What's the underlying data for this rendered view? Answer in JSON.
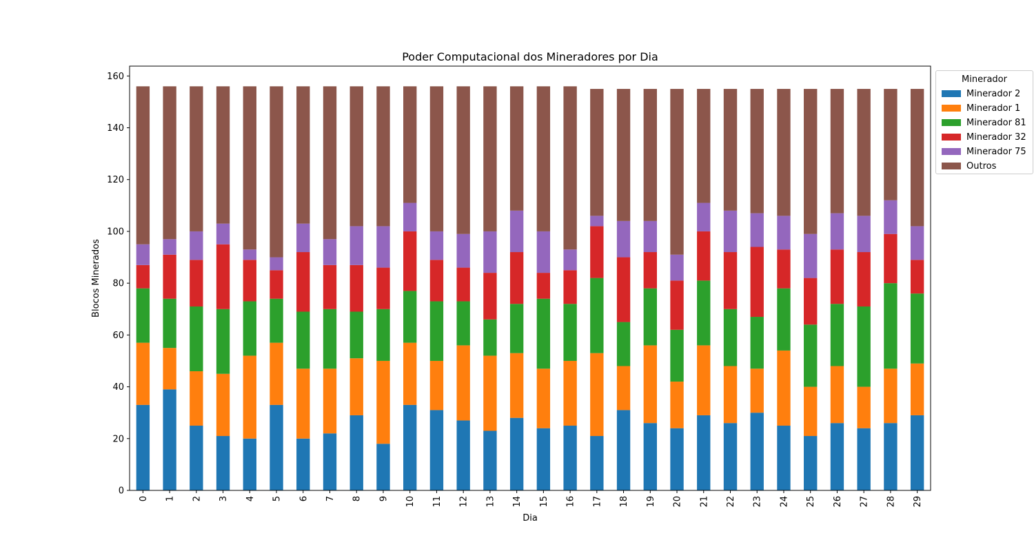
{
  "chart_data": {
    "type": "bar",
    "stacked": true,
    "title": "Poder Computacional dos Mineradores por Dia",
    "xlabel": "Dia",
    "ylabel": "Blocos Minerados",
    "ylim": [
      0,
      163.8
    ],
    "yticks": [
      0,
      20,
      40,
      60,
      80,
      100,
      120,
      140,
      160
    ],
    "grid": false,
    "legend": {
      "title": "Minerador",
      "placement": "outside-top-right"
    },
    "categories": [
      "0",
      "1",
      "2",
      "3",
      "4",
      "5",
      "6",
      "7",
      "8",
      "9",
      "10",
      "11",
      "12",
      "13",
      "14",
      "15",
      "16",
      "17",
      "18",
      "19",
      "20",
      "21",
      "22",
      "23",
      "24",
      "25",
      "26",
      "27",
      "28",
      "29"
    ],
    "series": [
      {
        "name": "Minerador 2",
        "color": "#1f77b4",
        "values": [
          33,
          39,
          25,
          21,
          20,
          33,
          20,
          22,
          29,
          18,
          33,
          31,
          27,
          23,
          28,
          24,
          25,
          21,
          31,
          26,
          24,
          29,
          26,
          30,
          25,
          21,
          26,
          24,
          26,
          29
        ]
      },
      {
        "name": "Minerador 1",
        "color": "#ff7f0e",
        "values": [
          24,
          16,
          21,
          24,
          32,
          24,
          27,
          25,
          22,
          32,
          24,
          19,
          29,
          29,
          25,
          23,
          25,
          32,
          17,
          30,
          18,
          27,
          22,
          17,
          29,
          19,
          22,
          16,
          21,
          20
        ]
      },
      {
        "name": "Minerador 81",
        "color": "#2ca02c",
        "values": [
          21,
          19,
          25,
          25,
          21,
          17,
          22,
          23,
          18,
          20,
          20,
          23,
          17,
          14,
          19,
          27,
          22,
          29,
          17,
          22,
          20,
          25,
          22,
          20,
          24,
          24,
          24,
          31,
          33,
          27
        ]
      },
      {
        "name": "Minerador 32",
        "color": "#d62728",
        "values": [
          9,
          17,
          18,
          25,
          16,
          11,
          23,
          17,
          18,
          16,
          23,
          16,
          13,
          18,
          20,
          10,
          13,
          20,
          25,
          14,
          19,
          19,
          22,
          27,
          15,
          18,
          21,
          21,
          19,
          13
        ]
      },
      {
        "name": "Minerador 75",
        "color": "#9467bd",
        "values": [
          8,
          6,
          11,
          8,
          4,
          5,
          11,
          10,
          15,
          16,
          11,
          11,
          13,
          16,
          16,
          16,
          8,
          4,
          14,
          12,
          10,
          11,
          16,
          13,
          13,
          17,
          14,
          14,
          13,
          13
        ]
      },
      {
        "name": "Outros",
        "color": "#8c564b",
        "values": [
          61,
          59,
          56,
          53,
          63,
          66,
          53,
          59,
          54,
          54,
          45,
          56,
          57,
          56,
          48,
          56,
          63,
          49,
          51,
          51,
          64,
          44,
          47,
          48,
          49,
          56,
          48,
          49,
          43,
          53
        ]
      }
    ]
  }
}
